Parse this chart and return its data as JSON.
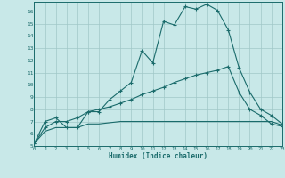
{
  "xlabel": "Humidex (Indice chaleur)",
  "bg_color": "#c8e8e8",
  "grid_color": "#a0c8c8",
  "line_color": "#1a6b6b",
  "xlim": [
    0,
    23
  ],
  "ylim": [
    5,
    16.8
  ],
  "xticks": [
    0,
    1,
    2,
    3,
    4,
    5,
    6,
    7,
    8,
    9,
    10,
    11,
    12,
    13,
    14,
    15,
    16,
    17,
    18,
    19,
    20,
    21,
    22,
    23
  ],
  "yticks": [
    5,
    6,
    7,
    8,
    9,
    10,
    11,
    12,
    13,
    14,
    15,
    16
  ],
  "line1_x": [
    0,
    1,
    2,
    3,
    4,
    5,
    6,
    7,
    8,
    9,
    10,
    11,
    12,
    13,
    14,
    15,
    16,
    17,
    18,
    19,
    20,
    21,
    22,
    23
  ],
  "line1_y": [
    5.2,
    7.0,
    7.3,
    6.5,
    6.5,
    7.8,
    7.8,
    8.8,
    9.5,
    10.2,
    12.8,
    11.8,
    15.2,
    14.9,
    16.4,
    16.2,
    16.6,
    16.1,
    14.5,
    11.4,
    9.4,
    8.0,
    7.5,
    6.8
  ],
  "line2_x": [
    0,
    1,
    2,
    3,
    4,
    5,
    6,
    7,
    8,
    9,
    10,
    11,
    12,
    13,
    14,
    15,
    16,
    17,
    18,
    19,
    20,
    21,
    22,
    23
  ],
  "line2_y": [
    5.2,
    6.5,
    7.0,
    7.0,
    7.3,
    7.8,
    8.0,
    8.2,
    8.5,
    8.8,
    9.2,
    9.5,
    9.8,
    10.2,
    10.5,
    10.8,
    11.0,
    11.2,
    11.5,
    9.4,
    8.0,
    7.5,
    6.8,
    6.6
  ],
  "line3_x": [
    0,
    1,
    2,
    3,
    4,
    5,
    6,
    7,
    8,
    9,
    10,
    11,
    12,
    13,
    14,
    15,
    16,
    17,
    18,
    19,
    20,
    21,
    22,
    23
  ],
  "line3_y": [
    5.2,
    6.2,
    6.5,
    6.5,
    6.5,
    6.8,
    6.8,
    6.9,
    7.0,
    7.0,
    7.0,
    7.0,
    7.0,
    7.0,
    7.0,
    7.0,
    7.0,
    7.0,
    7.0,
    7.0,
    7.0,
    7.0,
    7.0,
    6.7
  ]
}
